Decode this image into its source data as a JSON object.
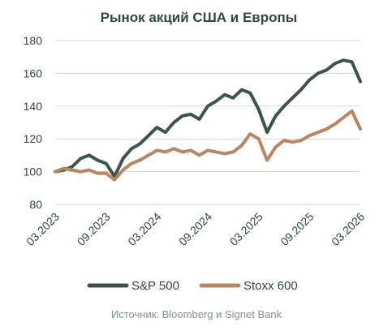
{
  "chart_data": {
    "type": "line",
    "title": "Рынок акций США и Европы",
    "source": "Источник: Bloomberg и Signet Bank",
    "ylim": [
      80,
      180
    ],
    "yticks": [
      80,
      100,
      120,
      140,
      160,
      180
    ],
    "xticks": [
      "03.2023",
      "09.2023",
      "03.2024",
      "09.2024",
      "03.2025",
      "09.2025",
      "03.2026"
    ],
    "grid": true,
    "legend_position": "bottom",
    "colors": {
      "text": "#2f4a3e",
      "sp500": "#3c5548",
      "stoxx": "#b88761",
      "grid": "#d9d9d9",
      "source": "#7a9a8a"
    },
    "series": [
      {
        "name": "S&P 500",
        "x": [
          "03.2023",
          "04.2023",
          "05.2023",
          "06.2023",
          "07.2023",
          "08.2023",
          "09.2023",
          "10.2023",
          "11.2023",
          "12.2023",
          "01.2024",
          "02.2024",
          "03.2024",
          "04.2024",
          "05.2024",
          "06.2024",
          "07.2024",
          "08.2024",
          "09.2024",
          "10.2024",
          "11.2024",
          "12.2024",
          "01.2025",
          "02.2025",
          "03.2025",
          "04.2025",
          "05.2025",
          "06.2025",
          "07.2025",
          "08.2025",
          "09.2025",
          "10.2025",
          "11.2025",
          "12.2025",
          "01.2026",
          "02.2026",
          "03.2026"
        ],
        "values": [
          100,
          101,
          103,
          108,
          110,
          107,
          105,
          97,
          108,
          114,
          117,
          122,
          127,
          124,
          130,
          134,
          135,
          132,
          140,
          143,
          147,
          145,
          150,
          148,
          138,
          124,
          134,
          140,
          145,
          150,
          156,
          160,
          162,
          166,
          168,
          167,
          155
        ]
      },
      {
        "name": "Stoxx 600",
        "x": [
          "03.2023",
          "04.2023",
          "05.2023",
          "06.2023",
          "07.2023",
          "08.2023",
          "09.2023",
          "10.2023",
          "11.2023",
          "12.2023",
          "01.2024",
          "02.2024",
          "03.2024",
          "04.2024",
          "05.2024",
          "06.2024",
          "07.2024",
          "08.2024",
          "09.2024",
          "10.2024",
          "11.2024",
          "12.2024",
          "01.2025",
          "02.2025",
          "03.2025",
          "04.2025",
          "05.2025",
          "06.2025",
          "07.2025",
          "08.2025",
          "09.2025",
          "10.2025",
          "11.2025",
          "12.2025",
          "01.2026",
          "02.2026",
          "03.2026"
        ],
        "values": [
          100,
          102,
          101,
          100,
          101,
          99,
          99,
          95,
          101,
          105,
          107,
          110,
          113,
          112,
          114,
          112,
          113,
          110,
          113,
          112,
          111,
          112,
          116,
          123,
          120,
          107,
          115,
          119,
          118,
          119,
          122,
          124,
          126,
          129,
          133,
          137,
          126
        ]
      }
    ]
  }
}
